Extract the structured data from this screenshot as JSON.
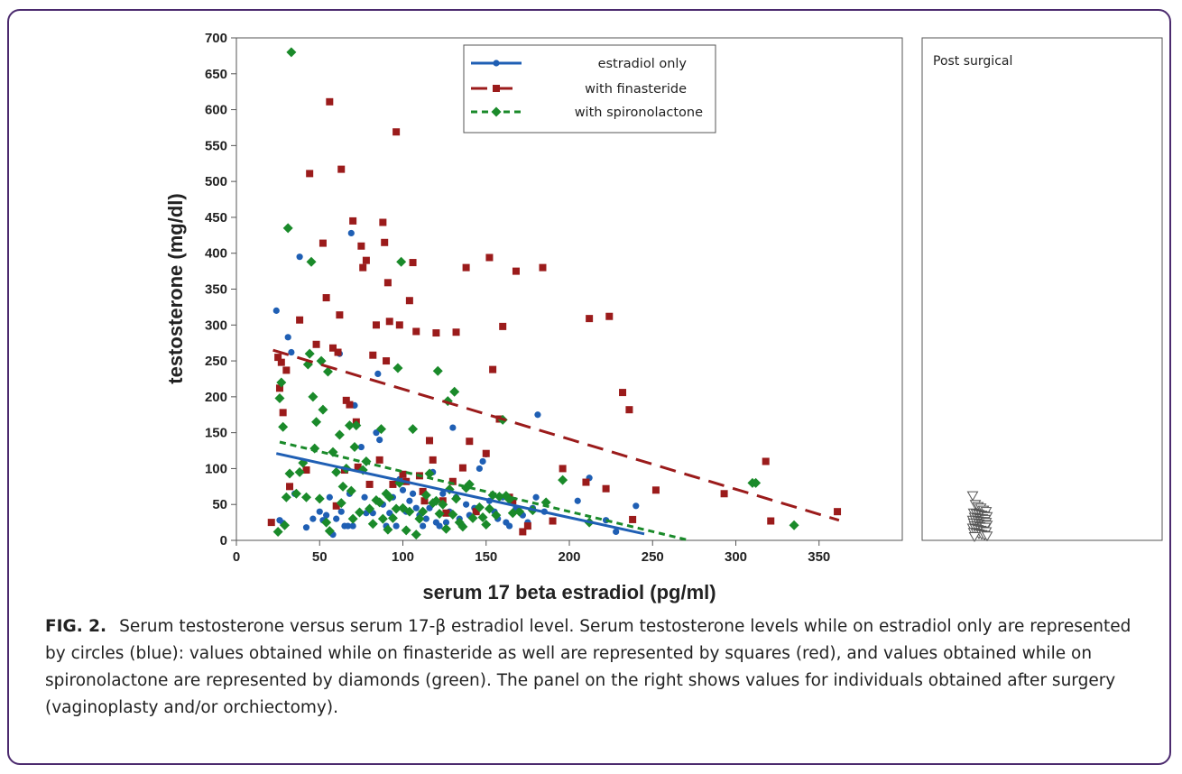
{
  "colors": {
    "estradiol_only": "#1f5fb4",
    "with_finasteride": "#9b1b1b",
    "with_spironolactone": "#1a8a2a",
    "frame": "#4b2a6e"
  },
  "caption": {
    "label": "FIG. 2.",
    "text": "Serum testosterone versus serum 17-β estradiol level. Serum testosterone levels while on estradiol only are represented by circles (blue): values obtained while on finasteride as well are represented by squares (red), and values obtained while on spironolactone are represented by diamonds (green). The panel on the right shows values for individuals obtained after surgery (vaginoplasty and/or orchiectomy)."
  },
  "chart_data": [
    {
      "type": "scatter",
      "xlabel": "serum 17 beta estradiol (pg/ml)",
      "ylabel": "testosterone (mg/dl)",
      "xlim": [
        0,
        400
      ],
      "ylim": [
        0,
        700
      ],
      "xticks": [
        0,
        50,
        100,
        150,
        200,
        250,
        300,
        350
      ],
      "yticks": [
        0,
        50,
        100,
        150,
        200,
        250,
        300,
        350,
        400,
        450,
        500,
        550,
        600,
        650,
        700
      ],
      "legend_position": "top-center",
      "series": [
        {
          "name": "estradiol only",
          "marker": "circle",
          "trend": {
            "x": [
              24,
              245
            ],
            "y": [
              121,
              9
            ]
          },
          "points": [
            [
              24,
              320
            ],
            [
              26,
              28
            ],
            [
              28,
              24
            ],
            [
              31,
              283
            ],
            [
              33,
              262
            ],
            [
              35,
              65
            ],
            [
              38,
              395
            ],
            [
              42,
              18
            ],
            [
              46,
              30
            ],
            [
              50,
              40
            ],
            [
              52,
              28
            ],
            [
              54,
              35
            ],
            [
              56,
              60
            ],
            [
              58,
              8
            ],
            [
              60,
              30
            ],
            [
              62,
              260
            ],
            [
              63,
              40
            ],
            [
              65,
              20
            ],
            [
              67,
              20
            ],
            [
              68,
              65
            ],
            [
              69,
              428
            ],
            [
              70,
              20
            ],
            [
              71,
              188
            ],
            [
              72,
              160
            ],
            [
              75,
              130
            ],
            [
              77,
              60
            ],
            [
              78,
              38
            ],
            [
              80,
              42
            ],
            [
              82,
              38
            ],
            [
              84,
              150
            ],
            [
              85,
              232
            ],
            [
              86,
              140
            ],
            [
              88,
              50
            ],
            [
              90,
              20
            ],
            [
              92,
              38
            ],
            [
              94,
              60
            ],
            [
              96,
              20
            ],
            [
              98,
              85
            ],
            [
              100,
              70
            ],
            [
              102,
              40
            ],
            [
              104,
              55
            ],
            [
              106,
              65
            ],
            [
              108,
              45
            ],
            [
              110,
              35
            ],
            [
              112,
              20
            ],
            [
              114,
              30
            ],
            [
              116,
              45
            ],
            [
              118,
              95
            ],
            [
              120,
              25
            ],
            [
              122,
              20
            ],
            [
              124,
              65
            ],
            [
              126,
              25
            ],
            [
              128,
              40
            ],
            [
              130,
              157
            ],
            [
              132,
              60
            ],
            [
              134,
              30
            ],
            [
              136,
              20
            ],
            [
              138,
              50
            ],
            [
              140,
              35
            ],
            [
              143,
              45
            ],
            [
              146,
              100
            ],
            [
              148,
              110
            ],
            [
              150,
              120
            ],
            [
              152,
              55
            ],
            [
              155,
              40
            ],
            [
              157,
              30
            ],
            [
              160,
              60
            ],
            [
              162,
              25
            ],
            [
              164,
              20
            ],
            [
              168,
              45
            ],
            [
              172,
              35
            ],
            [
              175,
              25
            ],
            [
              178,
              45
            ],
            [
              180,
              60
            ],
            [
              181,
              175
            ],
            [
              185,
              40
            ],
            [
              205,
              55
            ],
            [
              212,
              87
            ],
            [
              222,
              28
            ],
            [
              228,
              12
            ],
            [
              240,
              48
            ]
          ]
        },
        {
          "name": "with finasteride",
          "marker": "square",
          "trend": {
            "x": [
              22,
              362
            ],
            "y": [
              265,
              28
            ]
          },
          "points": [
            [
              21,
              25
            ],
            [
              25,
              255
            ],
            [
              26,
              212
            ],
            [
              27,
              248
            ],
            [
              28,
              178
            ],
            [
              30,
              237
            ],
            [
              32,
              75
            ],
            [
              38,
              307
            ],
            [
              42,
              98
            ],
            [
              44,
              511
            ],
            [
              48,
              273
            ],
            [
              52,
              414
            ],
            [
              54,
              338
            ],
            [
              56,
              611
            ],
            [
              58,
              268
            ],
            [
              60,
              48
            ],
            [
              61,
              262
            ],
            [
              62,
              314
            ],
            [
              63,
              517
            ],
            [
              65,
              98
            ],
            [
              66,
              195
            ],
            [
              68,
              189
            ],
            [
              70,
              445
            ],
            [
              72,
              165
            ],
            [
              73,
              102
            ],
            [
              75,
              410
            ],
            [
              76,
              380
            ],
            [
              78,
              390
            ],
            [
              80,
              78
            ],
            [
              82,
              258
            ],
            [
              84,
              300
            ],
            [
              86,
              112
            ],
            [
              88,
              443
            ],
            [
              89,
              415
            ],
            [
              90,
              250
            ],
            [
              91,
              359
            ],
            [
              92,
              305
            ],
            [
              94,
              78
            ],
            [
              96,
              569
            ],
            [
              98,
              300
            ],
            [
              100,
              92
            ],
            [
              102,
              82
            ],
            [
              104,
              334
            ],
            [
              106,
              387
            ],
            [
              108,
              291
            ],
            [
              110,
              90
            ],
            [
              112,
              68
            ],
            [
              113,
              55
            ],
            [
              116,
              139
            ],
            [
              118,
              112
            ],
            [
              120,
              289
            ],
            [
              124,
              55
            ],
            [
              126,
              38
            ],
            [
              130,
              82
            ],
            [
              132,
              290
            ],
            [
              136,
              101
            ],
            [
              138,
              380
            ],
            [
              140,
              138
            ],
            [
              144,
              40
            ],
            [
              150,
              121
            ],
            [
              152,
              394
            ],
            [
              154,
              238
            ],
            [
              158,
              169
            ],
            [
              160,
              298
            ],
            [
              164,
              60
            ],
            [
              166,
              55
            ],
            [
              168,
              375
            ],
            [
              172,
              12
            ],
            [
              175,
              20
            ],
            [
              184,
              380
            ],
            [
              190,
              27
            ],
            [
              196,
              100
            ],
            [
              210,
              81
            ],
            [
              212,
              309
            ],
            [
              222,
              72
            ],
            [
              224,
              312
            ],
            [
              232,
              206
            ],
            [
              236,
              182
            ],
            [
              238,
              29
            ],
            [
              252,
              70
            ],
            [
              293,
              65
            ],
            [
              318,
              110
            ],
            [
              321,
              27
            ],
            [
              361,
              40
            ]
          ]
        },
        {
          "name": "with spironolactone",
          "marker": "diamond",
          "trend": {
            "x": [
              26,
              272
            ],
            "y": [
              137,
              0
            ]
          },
          "points": [
            [
              25,
              12
            ],
            [
              26,
              198
            ],
            [
              27,
              220
            ],
            [
              28,
              158
            ],
            [
              29,
              21
            ],
            [
              30,
              60
            ],
            [
              31,
              435
            ],
            [
              32,
              93
            ],
            [
              33,
              680
            ],
            [
              36,
              65
            ],
            [
              38,
              95
            ],
            [
              40,
              108
            ],
            [
              42,
              60
            ],
            [
              43,
              245
            ],
            [
              44,
              260
            ],
            [
              45,
              388
            ],
            [
              46,
              200
            ],
            [
              47,
              128
            ],
            [
              48,
              165
            ],
            [
              50,
              58
            ],
            [
              51,
              250
            ],
            [
              52,
              182
            ],
            [
              54,
              25
            ],
            [
              55,
              235
            ],
            [
              56,
              13
            ],
            [
              58,
              123
            ],
            [
              60,
              95
            ],
            [
              62,
              147
            ],
            [
              63,
              52
            ],
            [
              64,
              75
            ],
            [
              66,
              100
            ],
            [
              68,
              160
            ],
            [
              69,
              69
            ],
            [
              70,
              30
            ],
            [
              71,
              130
            ],
            [
              72,
              160
            ],
            [
              74,
              39
            ],
            [
              76,
              98
            ],
            [
              78,
              110
            ],
            [
              80,
              44
            ],
            [
              82,
              23
            ],
            [
              84,
              56
            ],
            [
              86,
              53
            ],
            [
              87,
              155
            ],
            [
              88,
              30
            ],
            [
              90,
              65
            ],
            [
              91,
              15
            ],
            [
              92,
              60
            ],
            [
              94,
              31
            ],
            [
              96,
              44
            ],
            [
              97,
              240
            ],
            [
              98,
              80
            ],
            [
              99,
              388
            ],
            [
              100,
              45
            ],
            [
              102,
              14
            ],
            [
              104,
              40
            ],
            [
              106,
              155
            ],
            [
              108,
              8
            ],
            [
              110,
              30
            ],
            [
              112,
              40
            ],
            [
              114,
              63
            ],
            [
              116,
              93
            ],
            [
              118,
              52
            ],
            [
              120,
              55
            ],
            [
              121,
              236
            ],
            [
              122,
              37
            ],
            [
              124,
              50
            ],
            [
              126,
              16
            ],
            [
              127,
              194
            ],
            [
              128,
              71
            ],
            [
              130,
              36
            ],
            [
              131,
              207
            ],
            [
              132,
              58
            ],
            [
              134,
              25
            ],
            [
              136,
              19
            ],
            [
              138,
              73
            ],
            [
              140,
              78
            ],
            [
              142,
              31
            ],
            [
              146,
              46
            ],
            [
              148,
              32
            ],
            [
              150,
              22
            ],
            [
              152,
              44
            ],
            [
              154,
              63
            ],
            [
              156,
              35
            ],
            [
              158,
              61
            ],
            [
              160,
              168
            ],
            [
              162,
              62
            ],
            [
              164,
              57
            ],
            [
              166,
              38
            ],
            [
              170,
              40
            ],
            [
              178,
              42
            ],
            [
              186,
              53
            ],
            [
              196,
              84
            ],
            [
              212,
              25
            ],
            [
              310,
              80
            ],
            [
              312,
              80
            ],
            [
              335,
              21
            ]
          ]
        }
      ]
    },
    {
      "type": "scatter",
      "title": "Post surgical",
      "marker": "triangle-down",
      "ylim": [
        0,
        700
      ],
      "values": [
        62,
        50,
        47,
        45,
        42,
        40,
        38,
        37,
        36,
        35,
        34,
        33,
        32,
        31,
        30,
        30,
        29,
        28,
        28,
        27,
        26,
        26,
        25,
        24,
        24,
        23,
        22,
        22,
        21,
        20,
        20,
        19,
        18,
        18,
        17,
        16,
        15,
        14,
        13,
        12,
        11,
        10,
        9,
        8,
        7,
        6,
        5
      ]
    }
  ]
}
